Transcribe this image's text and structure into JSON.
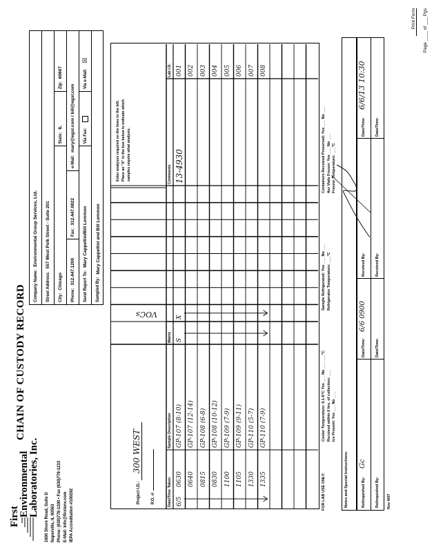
{
  "lab": {
    "name_lines": [
      "First",
      "Environmental",
      "Laboratories, Inc."
    ],
    "address": [
      "1600 Shore Road, Suite D",
      "Naperville, IL 60563",
      "Phone: (630)778-1200 • Fax (630)778-1233",
      "E-Mail: info@firstenv.com",
      "IEPA Accreditation #100292"
    ]
  },
  "title": "CHAIN OF CUSTODY RECORD",
  "page_info": {
    "print_form": "Print Form",
    "page_label": "Page",
    "of_label": "of",
    "pgs_label": "Pgs"
  },
  "client": {
    "company_label": "Company Name:",
    "company": "Environmental Group Services, Ltd.",
    "street_label": "Street Address:",
    "street": "557 West Polk Street - Suite 201",
    "city_label": "City:",
    "city": "Chicago",
    "state_label": "State:",
    "state": "IL",
    "zip_label": "Zip:",
    "zip": "60607",
    "phone_label": "Phone:",
    "phone": "312.447.1200",
    "fax_label": "Fax:",
    "fax": "312.447.0822",
    "email_label": "e-Mail:",
    "email": "mary@egsl.com / bill@egsl.com",
    "send_report_label": "Send Report To:",
    "send_report": "Mary Cappellini/Bill Lemmon",
    "via_fax_label": "Via Fax:",
    "via_fax_checked": false,
    "via_email_label": "Via e-Mail:",
    "via_email_mark": "☒",
    "sampled_by_label": "Sampled By:",
    "sampled_by": "Mary Cappellini and Bill Lemmon"
  },
  "project": {
    "id_label": "Project I.D.:",
    "id": "300 WEST",
    "po_label": "P.O. #:",
    "po": ""
  },
  "table": {
    "instructions": [
      "Enter analyses required on the lines to the left.",
      "Place an \"X\" in the box below to indicate which",
      "samples require what analysis."
    ],
    "headers": {
      "date_time": "Date/Time Taken",
      "description": "Sample Description",
      "matrix": "Matrix",
      "comments": "Comments",
      "lab_id": "Lab I.D."
    },
    "analyses": [
      "VOCs",
      "",
      "",
      "",
      "",
      "",
      "",
      ""
    ],
    "rows": [
      {
        "date": "6/5",
        "time": "0630",
        "description": "GP-107 (8-10)",
        "matrix": "S",
        "voc": "X",
        "comments": "13-4930",
        "lab_id": "001"
      },
      {
        "date": "",
        "time": "0640",
        "description": "GP-107 (12-14)",
        "matrix": "",
        "voc": "",
        "comments": "",
        "lab_id": "002"
      },
      {
        "date": "",
        "time": "0815",
        "description": "GP-108 (6-8)",
        "matrix": "",
        "voc": "",
        "comments": "",
        "lab_id": "003"
      },
      {
        "date": "",
        "time": "0830",
        "description": "GP-108 (10-12)",
        "matrix": "",
        "voc": "",
        "comments": "",
        "lab_id": "004"
      },
      {
        "date": "",
        "time": "1100",
        "description": "GP-109 (7-9)",
        "matrix": "",
        "voc": "",
        "comments": "",
        "lab_id": "005"
      },
      {
        "date": "",
        "time": "1105",
        "description": "GP-109 (9-11)",
        "matrix": "",
        "voc": "",
        "comments": "",
        "lab_id": "006"
      },
      {
        "date": "",
        "time": "1330",
        "description": "GP-110 (5-7)",
        "matrix": "",
        "voc": "",
        "comments": "",
        "lab_id": "007"
      },
      {
        "date": "",
        "time": "1335",
        "description": "GP-110 (7-9)",
        "matrix": "",
        "voc": "",
        "comments": "",
        "lab_id": "008"
      },
      {},
      {},
      {},
      {}
    ]
  },
  "lab_use": {
    "label": "FOR LAB USE ONLY:",
    "cooler": "Cooler Temperature: 0.1-6°C  Yes ___ No ___  ___°C",
    "received": "Received within 6 hrs. of collection: ___",
    "ice": "Ice Present: Yes ___ No ___",
    "refrigerated": "Sample Refrigerated: Yes ___ No ___",
    "refrig_temp": "Refrigerator Temperature: ___°C",
    "preserved": "Containers Received Preserved: Yes ___ No ___",
    "vials": "4oz Vials Frozen: Yes ___ No ___",
    "freezer": "Freezer Temperature: ___°C"
  },
  "notes_label": "Notes and Special Instructions:",
  "custody": [
    {
      "relinquished_label": "Relinquished By:",
      "datetime_label": "Date/Time:",
      "datetime": "6/6  0900",
      "received_label": "Received By:",
      "datetime2_label": "Date/Time:",
      "datetime2": "6/6/13  10:30"
    },
    {
      "relinquished_label": "Relinquished By:",
      "datetime_label": "Date/Time:",
      "datetime": "",
      "received_label": "Received By:",
      "datetime2_label": "Date/Time:",
      "datetime2": ""
    }
  ],
  "revision": "Rev 4/07"
}
